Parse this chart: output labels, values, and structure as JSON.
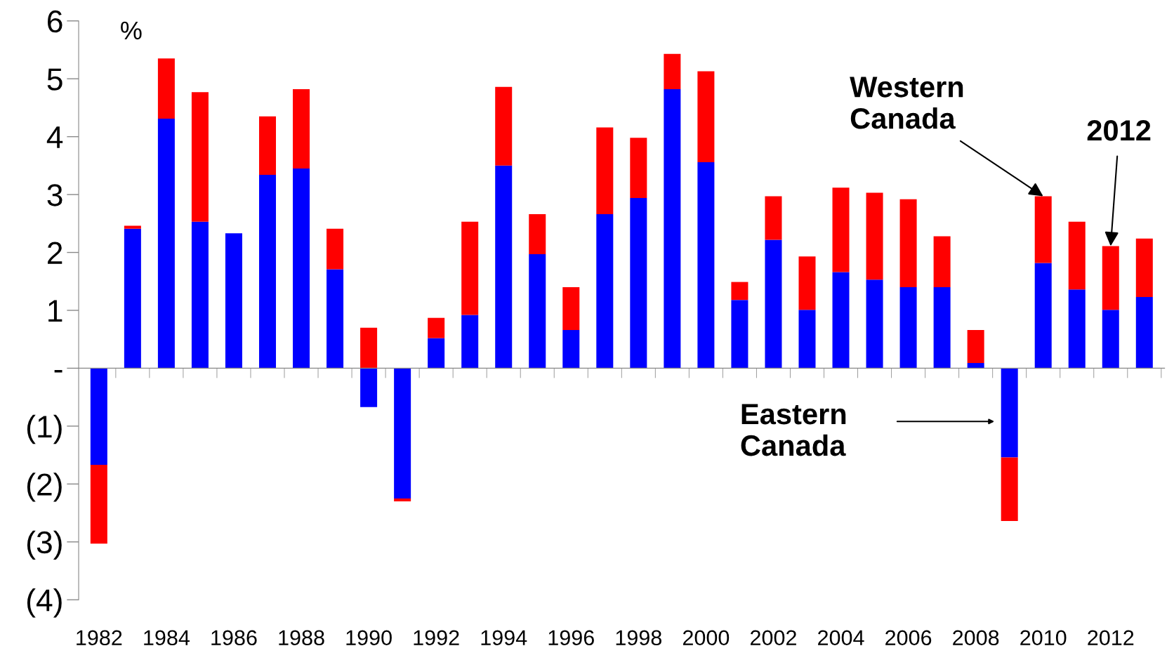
{
  "chart_data": {
    "type": "bar",
    "stacked": true,
    "categories": [
      "1982",
      null,
      "1984",
      null,
      "1986",
      null,
      "1988",
      null,
      "1990",
      null,
      "1992",
      null,
      "1994",
      null,
      "1996",
      null,
      "1998",
      null,
      "2000",
      null,
      "2002",
      null,
      "2004",
      null,
      "2006",
      null,
      "2008",
      null,
      "2010",
      null,
      "2012",
      null
    ],
    "series": [
      {
        "color": "#0000ff",
        "values": [
          -1.67,
          2.41,
          4.31,
          2.53,
          2.33,
          3.34,
          3.45,
          1.71,
          -0.67,
          -2.25,
          0.52,
          0.92,
          3.5,
          1.97,
          0.66,
          2.66,
          2.94,
          4.82,
          3.56,
          1.18,
          2.22,
          1.01,
          1.66,
          1.53,
          1.4,
          1.4,
          0.09,
          -1.54,
          1.82,
          1.36,
          1.01,
          1.23
        ]
      },
      {
        "color": "#ff0000",
        "values": [
          -1.36,
          0.05,
          1.04,
          2.24,
          0,
          1.01,
          1.37,
          0.7,
          0.7,
          -0.05,
          0.35,
          1.61,
          1.36,
          0.69,
          0.74,
          1.5,
          1.04,
          0.61,
          1.57,
          0.31,
          0.75,
          0.92,
          1.46,
          1.5,
          1.52,
          0.88,
          0.57,
          -1.1,
          1.15,
          1.17,
          1.1,
          1.01
        ]
      }
    ],
    "ylim": [
      -4,
      6
    ],
    "yticks": [
      {
        "value": -4,
        "label": "(4)"
      },
      {
        "value": -3,
        "label": "(3)"
      },
      {
        "value": -2,
        "label": "(2)"
      },
      {
        "value": -1,
        "label": "(1)"
      },
      {
        "value": 0,
        "label": "-"
      },
      1,
      2,
      3,
      4,
      5,
      6
    ],
    "legend": false,
    "annotations": [
      "%",
      {
        "text": "Western\nCanada",
        "x": "2010",
        "y": 2.97
      },
      "Eastern\nCanada",
      {
        "text": "2012",
        "x": "2012",
        "y": 2.11
      }
    ]
  }
}
